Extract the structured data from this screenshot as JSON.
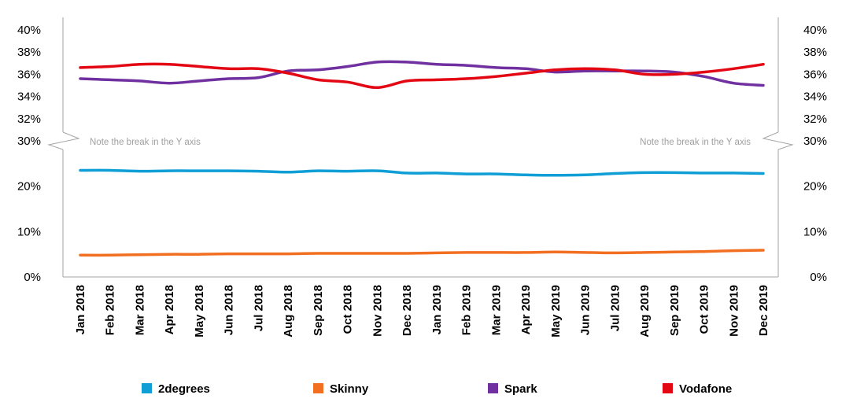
{
  "chart_data": {
    "type": "line",
    "title": "",
    "xlabel": "",
    "ylabel": "",
    "categories": [
      "Jan 2018",
      "Feb 2018",
      "Mar 2018",
      "Apr 2018",
      "May 2018",
      "Jun 2018",
      "Jul 2018",
      "Aug 2018",
      "Sep 2018",
      "Oct 2018",
      "Nov 2018",
      "Dec 2018",
      "Jan 2019",
      "Feb 2019",
      "Mar 2019",
      "Apr 2019",
      "May 2019",
      "Jun 2019",
      "Jul 2019",
      "Aug 2019",
      "Sep 2019",
      "Oct 2019",
      "Nov 2019",
      "Dec 2019"
    ],
    "y_axis": {
      "broken": true,
      "lower_segment": {
        "range": [
          0,
          30
        ],
        "ticks": [
          "0%",
          "10%",
          "20%"
        ]
      },
      "upper_segment": {
        "range": [
          30,
          40
        ],
        "ticks": [
          "30%",
          "32%",
          "34%",
          "36%",
          "38%",
          "40%"
        ]
      },
      "both_sides": true
    },
    "annotation": "Note the break in the Y axis",
    "legend_position": "bottom",
    "grid": false,
    "series": [
      {
        "name": "2degrees",
        "color": "#0f9ed5",
        "values": [
          23.5,
          23.5,
          23.3,
          23.4,
          23.4,
          23.4,
          23.3,
          23.1,
          23.4,
          23.3,
          23.4,
          22.9,
          22.9,
          22.7,
          22.7,
          22.5,
          22.4,
          22.5,
          22.8,
          23.0,
          23.0,
          22.9,
          22.9,
          22.8
        ]
      },
      {
        "name": "Skinny",
        "color": "#f26f21",
        "values": [
          4.8,
          4.8,
          4.9,
          5.0,
          5.0,
          5.1,
          5.1,
          5.1,
          5.2,
          5.2,
          5.2,
          5.2,
          5.3,
          5.4,
          5.4,
          5.4,
          5.5,
          5.4,
          5.3,
          5.4,
          5.5,
          5.6,
          5.8,
          5.9
        ]
      },
      {
        "name": "Spark",
        "color": "#7030a0",
        "values": [
          35.6,
          35.5,
          35.4,
          35.2,
          35.4,
          35.6,
          35.7,
          36.3,
          36.4,
          36.7,
          37.1,
          37.1,
          36.9,
          36.8,
          36.6,
          36.5,
          36.2,
          36.3,
          36.3,
          36.3,
          36.2,
          35.8,
          35.2,
          35.0
        ]
      },
      {
        "name": "Vodafone",
        "color": "#e30613",
        "values": [
          36.6,
          36.7,
          36.9,
          36.9,
          36.7,
          36.5,
          36.5,
          36.1,
          35.5,
          35.3,
          34.8,
          35.4,
          35.5,
          35.6,
          35.8,
          36.1,
          36.4,
          36.5,
          36.4,
          36.0,
          36.0,
          36.2,
          36.5,
          36.9
        ]
      }
    ]
  }
}
